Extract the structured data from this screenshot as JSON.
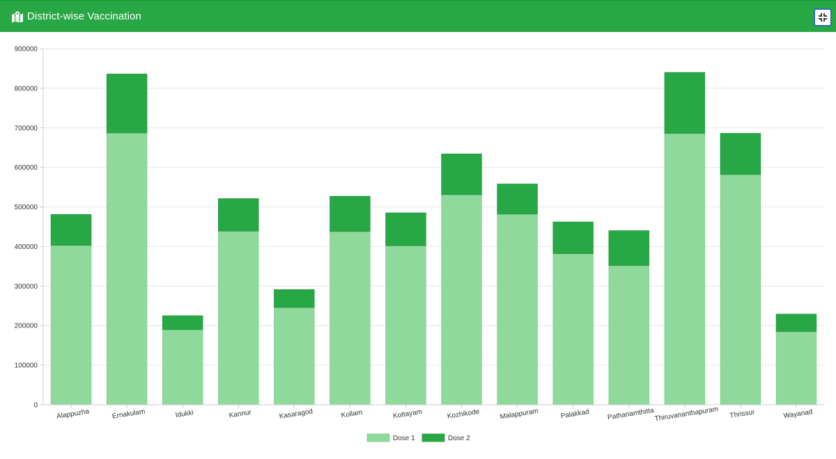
{
  "header": {
    "title": "District-wise Vaccination",
    "icon": "map-marked-icon",
    "fullscreen_icon": "compress-icon"
  },
  "colors": {
    "header_bg": "#28a745",
    "dose1": "#8fd99d",
    "dose2": "#28a745"
  },
  "chart_data": {
    "type": "bar",
    "stacked": true,
    "categories": [
      "Alappuzha",
      "Ernakulam",
      "Idukki",
      "Kannur",
      "Kasaragod",
      "Kollam",
      "Kottayam",
      "Kozhikode",
      "Malappuram",
      "Palakkad",
      "Pathanamthitta",
      "Thiruvananthapuram",
      "Thrissur",
      "Wayanad"
    ],
    "series": [
      {
        "name": "Dose 1",
        "values": [
          403000,
          687000,
          190000,
          439000,
          246000,
          438000,
          402000,
          531000,
          482000,
          382000,
          352000,
          686000,
          582000,
          185000
        ]
      },
      {
        "name": "Dose 2",
        "values": [
          78000,
          149000,
          35000,
          82000,
          45000,
          89000,
          83000,
          103000,
          76000,
          80000,
          88000,
          154000,
          104000,
          44000
        ]
      }
    ],
    "ylim": [
      0,
      900000
    ],
    "yticks": [
      "0",
      "100000",
      "200000",
      "300000",
      "400000",
      "500000",
      "600000",
      "700000",
      "800000",
      "900000"
    ],
    "grid": true,
    "legend_position": "bottom"
  }
}
